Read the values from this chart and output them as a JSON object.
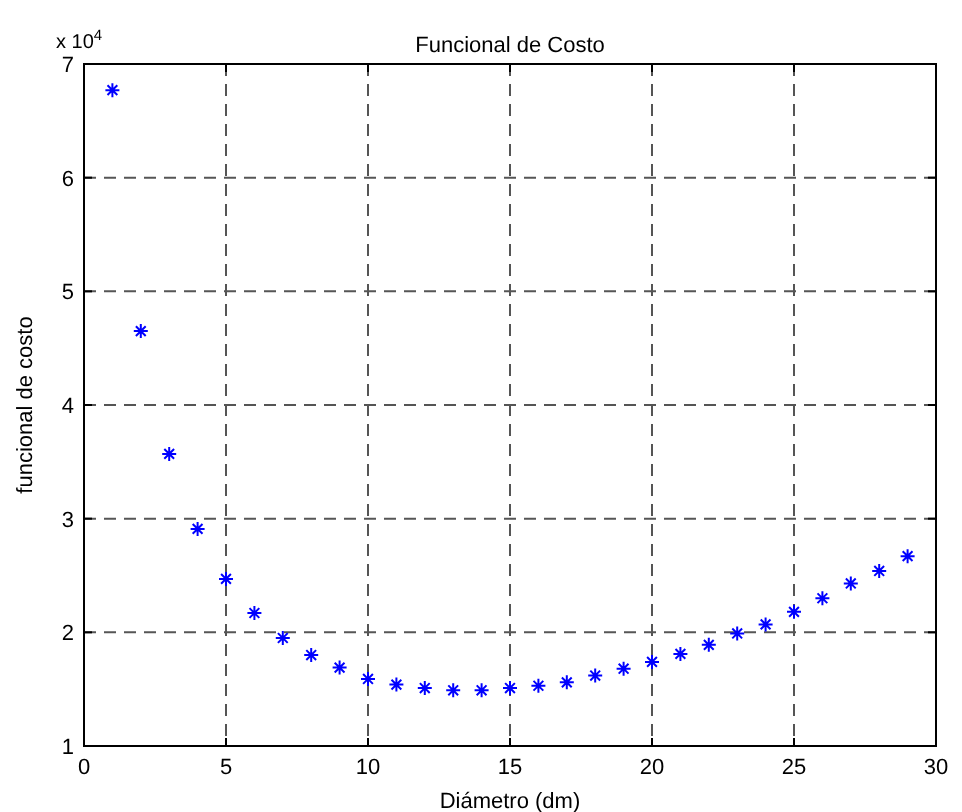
{
  "chart_data": {
    "type": "scatter",
    "title": "Funcional de Costo",
    "xlabel": "Diámetro (dm)",
    "ylabel": "funcional de costo",
    "annotations": [
      "x 10$^{4}$"
    ],
    "x": [
      1,
      2,
      3,
      4,
      5,
      6,
      7,
      8,
      9,
      10,
      11,
      12,
      13,
      14,
      15,
      16,
      17,
      18,
      19,
      20,
      21,
      22,
      23,
      24,
      25,
      26,
      27,
      28,
      29
    ],
    "series": [
      {
        "color": "#0000ff",
        "values": [
          6.77,
          4.65,
          3.57,
          2.91,
          2.47,
          2.17,
          1.95,
          1.8,
          1.69,
          1.59,
          1.54,
          1.51,
          1.49,
          1.49,
          1.51,
          1.53,
          1.56,
          1.62,
          1.68,
          1.74,
          1.81,
          1.89,
          1.99,
          2.07,
          2.18,
          2.3,
          2.43,
          2.54,
          2.67
        ]
      }
    ],
    "xlim": [
      0,
      30
    ],
    "xticks": [
      0,
      5,
      10,
      15,
      20,
      25,
      30
    ],
    "ylim": [
      1,
      7
    ],
    "yticks": [
      1,
      2,
      3,
      4,
      5,
      6,
      7
    ],
    "grid": true,
    "marker": "cross"
  }
}
